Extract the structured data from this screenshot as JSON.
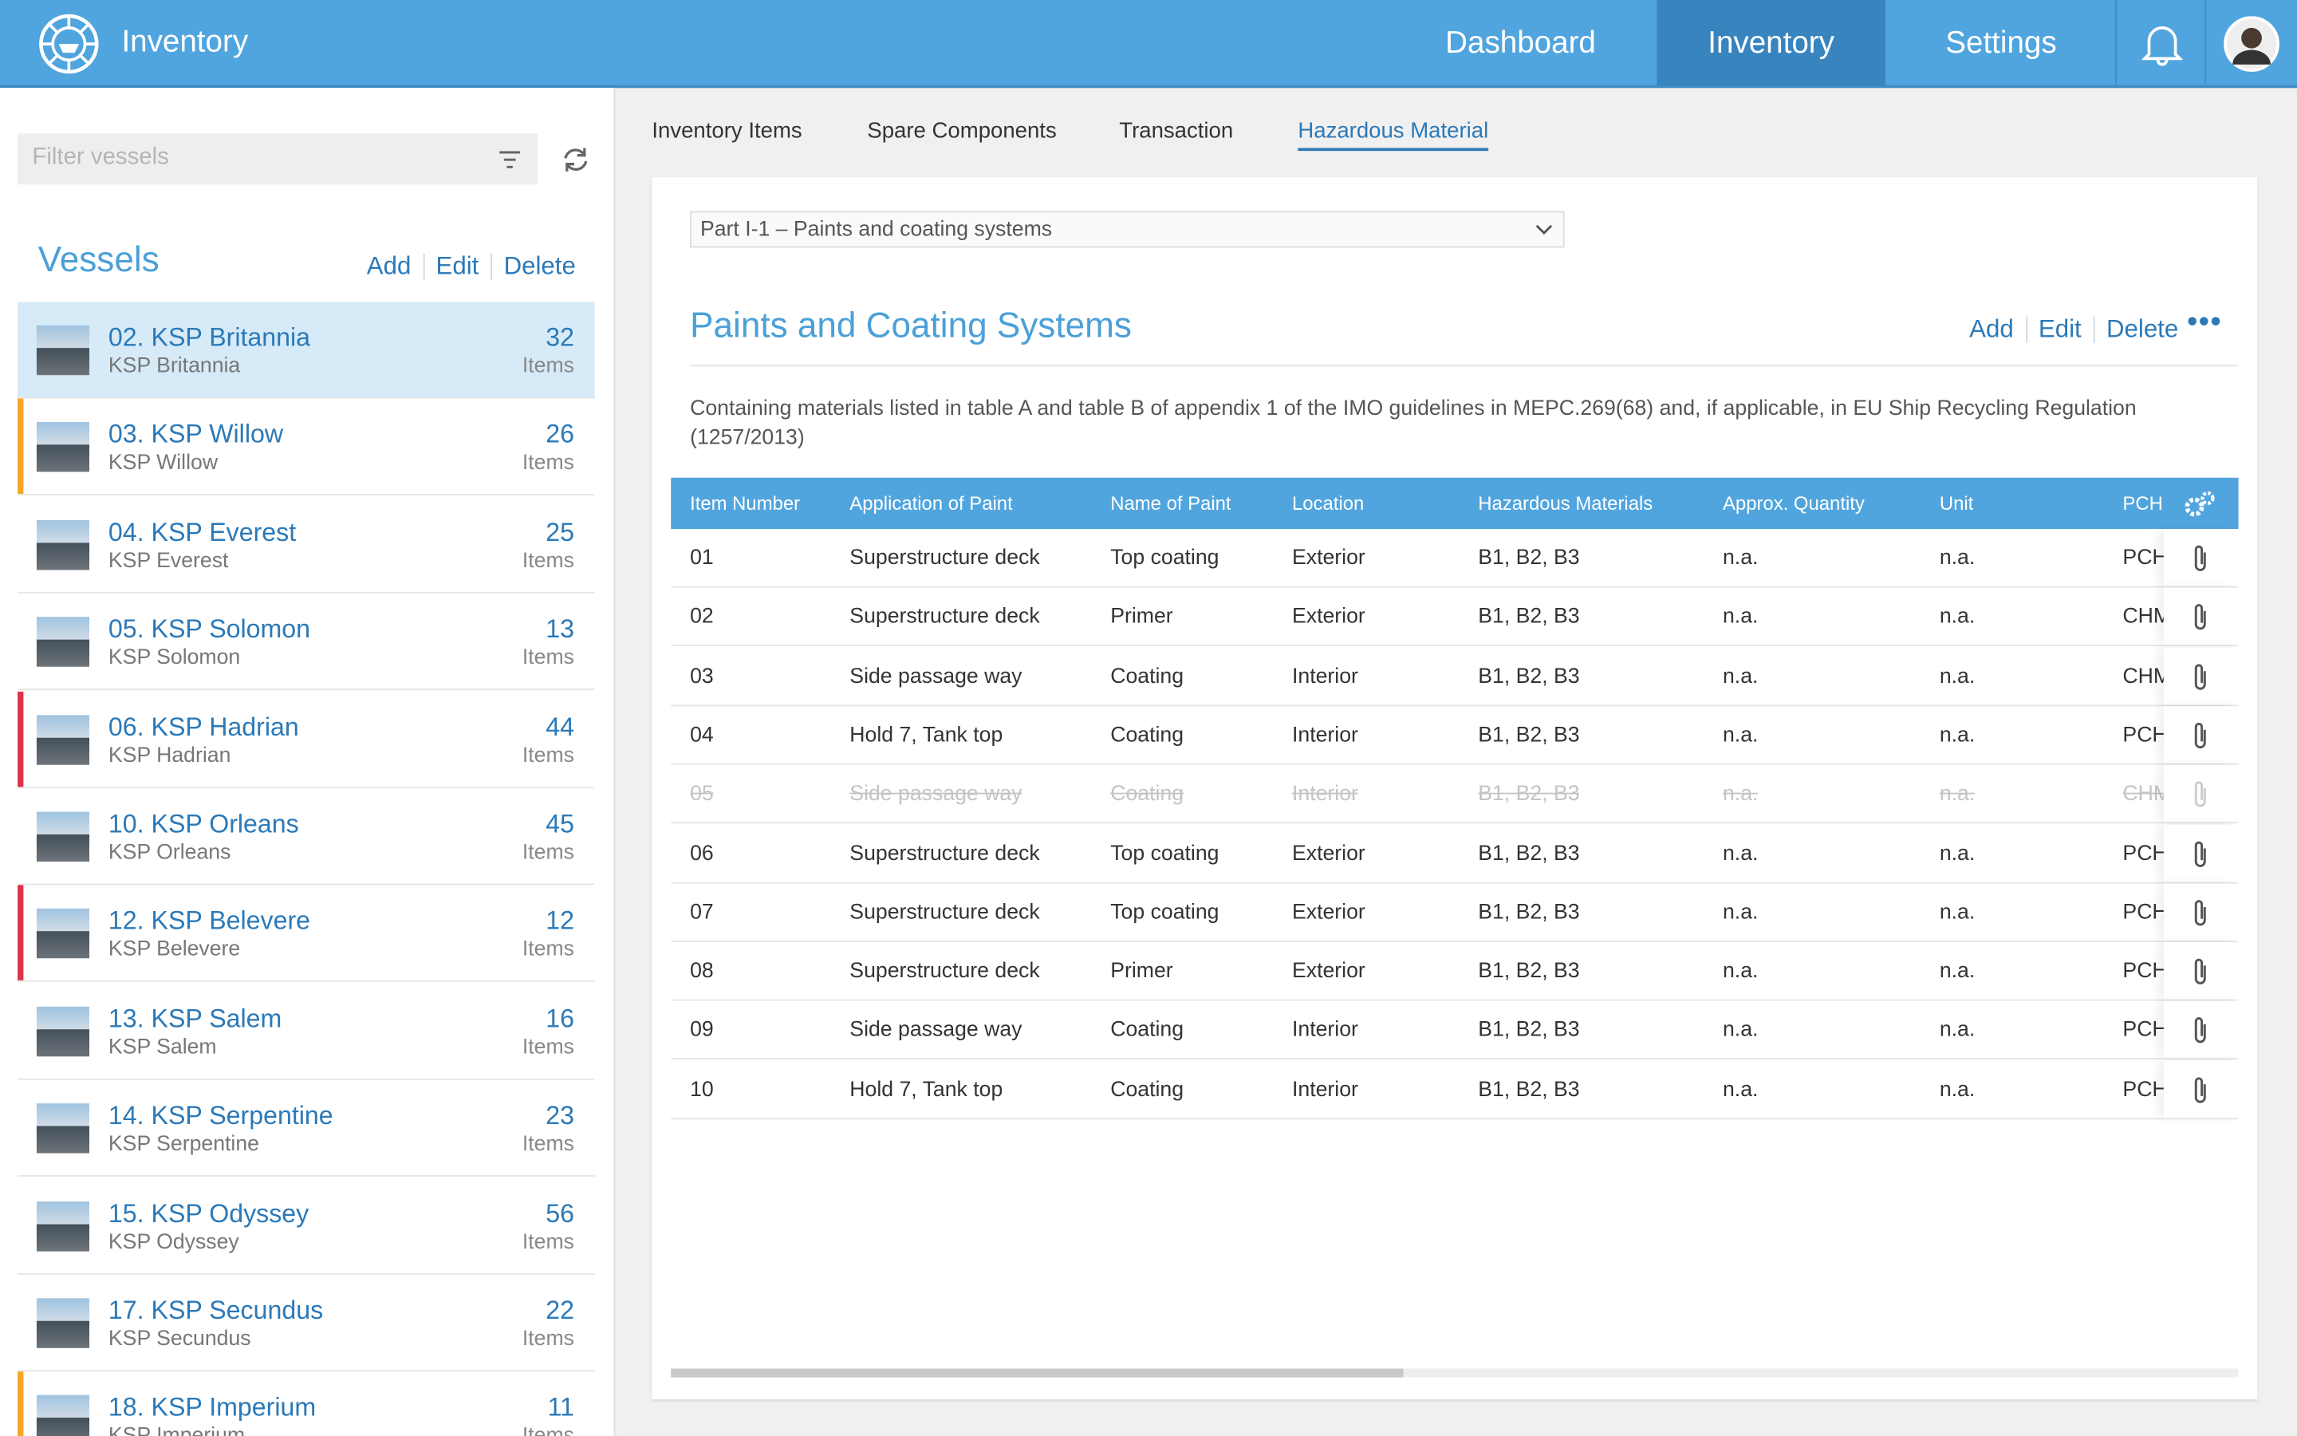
{
  "header": {
    "app_title": "Inventory",
    "nav": [
      "Dashboard",
      "Inventory",
      "Settings"
    ],
    "active_nav": 1
  },
  "sidebar": {
    "filter_placeholder": "Filter vessels",
    "title": "Vessels",
    "actions": [
      "Add",
      "Edit",
      "Delete"
    ],
    "items_label": "Items",
    "vessels": [
      {
        "name": "02. KSP Britannia",
        "subtitle": "KSP Britannia",
        "count": 32,
        "selected": true
      },
      {
        "name": "03. KSP Willow",
        "subtitle": "KSP Willow",
        "count": 26,
        "flag": "#f5a623"
      },
      {
        "name": "04. KSP Everest",
        "subtitle": "KSP Everest",
        "count": 25
      },
      {
        "name": "05. KSP Solomon",
        "subtitle": "KSP Solomon",
        "count": 13
      },
      {
        "name": "06. KSP Hadrian",
        "subtitle": "KSP Hadrian",
        "count": 44,
        "flag": "#e0324b"
      },
      {
        "name": "10. KSP Orleans",
        "subtitle": "KSP Orleans",
        "count": 45
      },
      {
        "name": "12. KSP Belevere",
        "subtitle": "KSP Belevere",
        "count": 12,
        "flag": "#e0324b"
      },
      {
        "name": "13. KSP Salem",
        "subtitle": "KSP Salem",
        "count": 16
      },
      {
        "name": "14. KSP Serpentine",
        "subtitle": "KSP Serpentine",
        "count": 23
      },
      {
        "name": "15. KSP Odyssey",
        "subtitle": "KSP Odyssey",
        "count": 56
      },
      {
        "name": "17. KSP Secundus",
        "subtitle": "KSP Secundus",
        "count": 22
      },
      {
        "name": "18. KSP Imperium",
        "subtitle": "KSP Imperium",
        "count": 11,
        "flag": "#f5a623"
      }
    ]
  },
  "tabs": [
    "Inventory Items",
    "Spare Components",
    "Transaction",
    "Hazardous Material"
  ],
  "active_tab": 3,
  "panel": {
    "dropdown": "Part I-1 – Paints and coating systems",
    "title": "Paints and Coating Systems",
    "actions": [
      "Add",
      "Edit",
      "Delete"
    ],
    "description": "Containing materials listed in table A and table B of appendix 1 of the IMO guidelines in MEPC.269(68) and, if applicable, in EU Ship Recycling Regulation (1257/2013)"
  },
  "table": {
    "columns": [
      "Item Number",
      "Application of Paint",
      "Name of Paint",
      "Location",
      "Hazardous Materials",
      "Approx. Quantity",
      "Unit",
      "PCHM"
    ],
    "rows": [
      {
        "cells": [
          "01",
          "Superstructure deck",
          "Top coating",
          "Exterior",
          "B1, B2, B3",
          "n.a.",
          "n.a.",
          "PCHM"
        ]
      },
      {
        "cells": [
          "02",
          "Superstructure deck",
          "Primer",
          "Exterior",
          "B1, B2, B3",
          "n.a.",
          "n.a.",
          "CHM"
        ]
      },
      {
        "cells": [
          "03",
          "Side passage way",
          "Coating",
          "Interior",
          "B1, B2, B3",
          "n.a.",
          "n.a.",
          "CHM"
        ]
      },
      {
        "cells": [
          "04",
          "Hold 7, Tank top",
          "Coating",
          "Interior",
          "B1, B2, B3",
          "n.a.",
          "n.a.",
          "PCHM"
        ]
      },
      {
        "cells": [
          "05",
          "Side passage way",
          "Coating",
          "Interior",
          "B1, B2, B3",
          "n.a.",
          "n.a.",
          "CHM"
        ],
        "struck": true
      },
      {
        "cells": [
          "06",
          "Superstructure deck",
          "Top coating",
          "Exterior",
          "B1, B2, B3",
          "n.a.",
          "n.a.",
          "PCHM"
        ]
      },
      {
        "cells": [
          "07",
          "Superstructure deck",
          "Top coating",
          "Exterior",
          "B1, B2, B3",
          "n.a.",
          "n.a.",
          "PCHM"
        ]
      },
      {
        "cells": [
          "08",
          "Superstructure deck",
          "Primer",
          "Exterior",
          "B1, B2, B3",
          "n.a.",
          "n.a.",
          "PCHM"
        ]
      },
      {
        "cells": [
          "09",
          "Side passage way",
          "Coating",
          "Interior",
          "B1, B2, B3",
          "n.a.",
          "n.a.",
          "PCHM"
        ]
      },
      {
        "cells": [
          "10",
          "Hold 7, Tank top",
          "Coating",
          "Interior",
          "B1, B2, B3",
          "n.a.",
          "n.a.",
          "PCHM"
        ]
      }
    ]
  }
}
